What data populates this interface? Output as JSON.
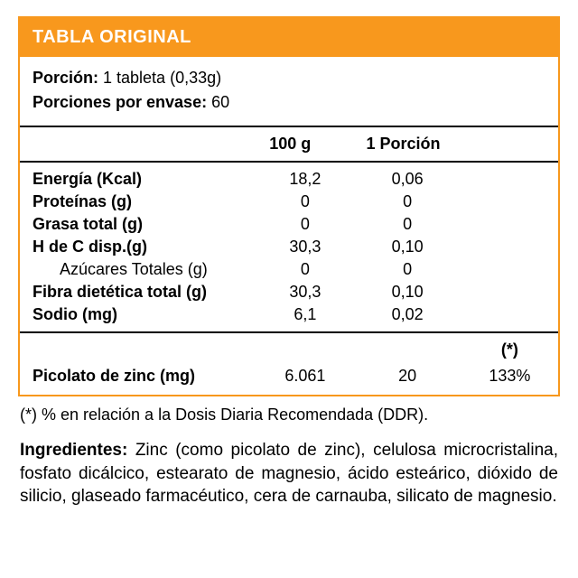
{
  "colors": {
    "accent": "#f8981d",
    "text": "#000000",
    "bg": "#ffffff",
    "rule": "#000000"
  },
  "title": "TABLA ORIGINAL",
  "serving": {
    "portion_label": "Porción:",
    "portion_value": " 1 tableta (0,33g)",
    "per_pack_label": "Porciones por envase:",
    "per_pack_value": "  60"
  },
  "headers": {
    "col_100g": "100 g",
    "col_portion": "1 Porción",
    "col_ddr": "(*)"
  },
  "rows": [
    {
      "name": "Energía (Kcal)",
      "bold": true,
      "indent": false,
      "per100g": "18,2",
      "portion": "0,06"
    },
    {
      "name": "Proteínas (g)",
      "bold": true,
      "indent": false,
      "per100g": "0",
      "portion": "0"
    },
    {
      "name": "Grasa total (g)",
      "bold": true,
      "indent": false,
      "per100g": "0",
      "portion": "0"
    },
    {
      "name": "H de C disp.(g)",
      "bold": true,
      "indent": false,
      "per100g": "30,3",
      "portion": "0,10"
    },
    {
      "name": "Azúcares Totales (g)",
      "bold": false,
      "indent": true,
      "per100g": "0",
      "portion": "0"
    },
    {
      "name": "Fibra dietética total (g)",
      "bold": true,
      "indent": false,
      "per100g": "30,3",
      "portion": "0,10"
    },
    {
      "name": "Sodio (mg)",
      "bold": true,
      "indent": false,
      "per100g": "6,1",
      "portion": "0,02"
    }
  ],
  "zinc": {
    "name": "Picolato de zinc (mg)",
    "per100g": "6.061",
    "portion": "20",
    "ddr": "133%"
  },
  "footnote": "(*) % en relación a la Dosis Diaria Recomendada (DDR).",
  "ingredients": {
    "lead": "Ingredientes:",
    "body": " Zinc (como picolato de zinc), celulosa microcristalina, fosfato dicálcico, estearato de magnesio, ácido esteárico, dióxido de silicio, glaseado farmacéutico, cera de carnauba, silicato de magnesio."
  }
}
